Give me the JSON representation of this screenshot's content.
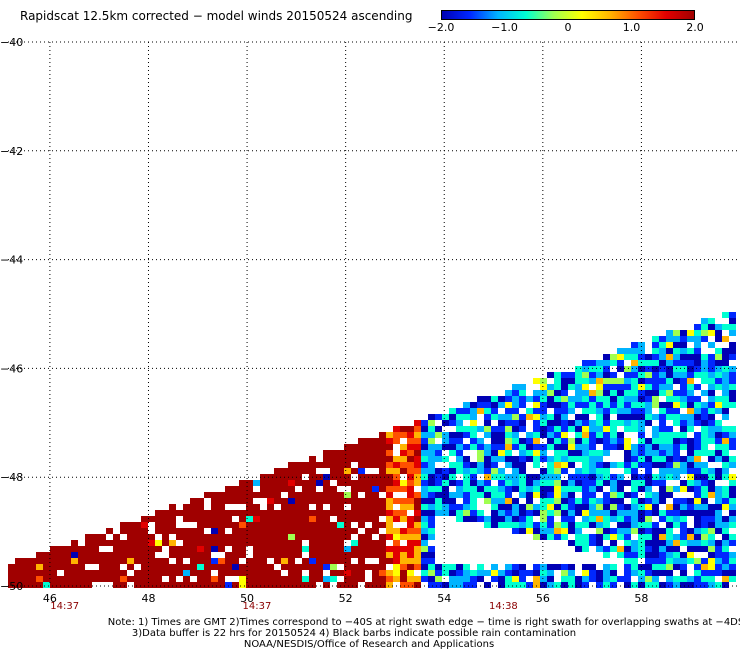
{
  "header": {
    "title": "Rapidscat 12.5km corrected − model winds 20150524 ascending"
  },
  "colorbar": {
    "ticks": [
      "−2.0",
      "−1.0",
      "0",
      "1.0",
      "2.0"
    ],
    "tick_values": [
      -2.0,
      -1.0,
      0,
      1.0,
      2.0
    ],
    "colors": [
      "#0000b4",
      "#0028ff",
      "#00b4ff",
      "#00ffd2",
      "#a0ff50",
      "#ffff00",
      "#ffb400",
      "#ff5000",
      "#e10000",
      "#a00000"
    ]
  },
  "chart_data": {
    "type": "heatmap",
    "title": "Rapidscat 12.5km corrected − model winds 20150524 ascending",
    "xlabel": "",
    "ylabel": "",
    "x_ticks": [
      "46",
      "48",
      "50",
      "52",
      "54",
      "56",
      "58"
    ],
    "x_tick_values": [
      46,
      48,
      50,
      52,
      54,
      56,
      58
    ],
    "y_ticks": [
      "−40",
      "−42",
      "−44",
      "−46",
      "−48",
      "−50"
    ],
    "y_tick_values": [
      -40,
      -42,
      -44,
      -46,
      -48,
      -50
    ],
    "xlim": [
      45.15,
      60.0
    ],
    "ylim": [
      -50,
      -40
    ],
    "time_labels": [
      {
        "x": 46.3,
        "text": "14:37"
      },
      {
        "x": 50.2,
        "text": "14:37"
      },
      {
        "x": 55.2,
        "text": "14:38"
      }
    ],
    "grid": true,
    "value_range": [
      -2.0,
      2.0
    ],
    "units": ""
  },
  "footer": {
    "line1": "Note: 1) Times are GMT 2)Times correspond to −40S at right swath edge − time is right swath for overlapping swaths at −4DS",
    "line2": "3)Data buffer is 22 hrs for 20150524 4) Black barbs indicate possible rain contamination",
    "line3": "NOAA/NESDIS/Office of Research and Applications"
  }
}
